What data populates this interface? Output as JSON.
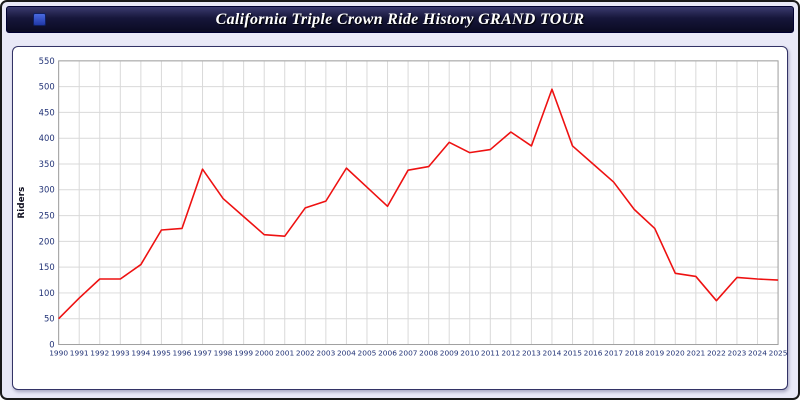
{
  "window": {
    "title": "California Triple Crown Ride History GRAND TOUR"
  },
  "chart_data": {
    "type": "line",
    "title": "California Triple Crown Ride History GRAND TOUR",
    "xlabel": "",
    "ylabel": "Riders",
    "ylim": [
      0,
      550
    ],
    "ytick_step": 50,
    "grid": true,
    "legend": "none",
    "line_color": "#ee1111",
    "x": [
      1990,
      1991,
      1992,
      1993,
      1994,
      1995,
      1996,
      1997,
      1998,
      1999,
      2000,
      2001,
      2002,
      2003,
      2004,
      2005,
      2006,
      2007,
      2008,
      2009,
      2010,
      2011,
      2012,
      2013,
      2014,
      2015,
      2016,
      2017,
      2018,
      2019,
      2020,
      2021,
      2022,
      2023,
      2024,
      2025
    ],
    "values": [
      50,
      90,
      127,
      127,
      155,
      222,
      225,
      340,
      283,
      248,
      213,
      210,
      265,
      278,
      342,
      305,
      268,
      338,
      345,
      392,
      372,
      378,
      412,
      385,
      495,
      385,
      350,
      315,
      262,
      225,
      138,
      132,
      85,
      130,
      127,
      125
    ]
  }
}
